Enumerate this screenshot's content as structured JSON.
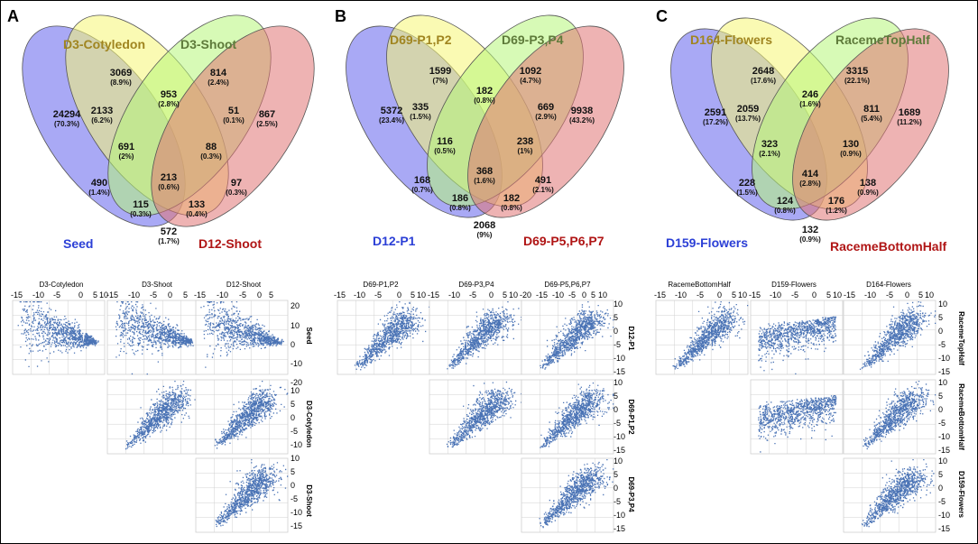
{
  "panels": [
    {
      "letter": "A",
      "venn": {
        "sets": [
          {
            "name": "Seed",
            "color": "#2b3fd6",
            "fill": "#7070ee"
          },
          {
            "name": "D3-Cotyledon",
            "color": "#a08520",
            "fill": "#f6f675"
          },
          {
            "name": "D3-Shoot",
            "color": "#5e7a3a",
            "fill": "#b7f67a"
          },
          {
            "name": "D12-Shoot",
            "color": "#b01515",
            "fill": "#e07575"
          }
        ],
        "regions": [
          {
            "count": "24294",
            "pct": "(70.3%)"
          },
          {
            "count": "3069",
            "pct": "(8.9%)"
          },
          {
            "count": "814",
            "pct": "(2.4%)"
          },
          {
            "count": "867",
            "pct": "(2.5%)"
          },
          {
            "count": "2133",
            "pct": "(6.2%)"
          },
          {
            "count": "953",
            "pct": "(2.8%)"
          },
          {
            "count": "51",
            "pct": "(0.1%)"
          },
          {
            "count": "691",
            "pct": "(2%)"
          },
          {
            "count": "88",
            "pct": "(0.3%)"
          },
          {
            "count": "213",
            "pct": "(0.6%)"
          },
          {
            "count": "490",
            "pct": "(1.4%)"
          },
          {
            "count": "97",
            "pct": "(0.3%)"
          },
          {
            "count": "115",
            "pct": "(0.3%)"
          },
          {
            "count": "133",
            "pct": "(0.4%)"
          },
          {
            "count": "572",
            "pct": "(1.7%)"
          }
        ]
      },
      "scatter": {
        "col_titles": [
          "D3-Cotyledon",
          "D3-Shoot",
          "D12-Shoot"
        ],
        "row_labels": [
          "Seed",
          "D3-Cotyledon",
          "D3-Shoot"
        ],
        "x_ticks": [
          "-15",
          "-10",
          "-5",
          "0",
          "5",
          "10"
        ],
        "y_ticks_first": [
          "20",
          "10",
          "0",
          "-10",
          "-20"
        ],
        "y_ticks_other": [
          "10",
          "5",
          "0",
          "-5",
          "-10",
          "-15"
        ]
      }
    },
    {
      "letter": "B",
      "venn": {
        "sets": [
          {
            "name": "D12-P1",
            "color": "#2b3fd6",
            "fill": "#7070ee"
          },
          {
            "name": "D69-P1,P2",
            "color": "#a08520",
            "fill": "#f6f675"
          },
          {
            "name": "D69-P3,P4",
            "color": "#5e7a3a",
            "fill": "#b7f67a"
          },
          {
            "name": "D69-P5,P6,P7",
            "color": "#b01515",
            "fill": "#e07575"
          }
        ],
        "regions": [
          {
            "count": "5372",
            "pct": "(23.4%)"
          },
          {
            "count": "1599",
            "pct": "(7%)"
          },
          {
            "count": "1092",
            "pct": "(4.7%)"
          },
          {
            "count": "9938",
            "pct": "(43.2%)"
          },
          {
            "count": "335",
            "pct": "(1.5%)"
          },
          {
            "count": "182",
            "pct": "(0.8%)"
          },
          {
            "count": "669",
            "pct": "(2.9%)"
          },
          {
            "count": "116",
            "pct": "(0.5%)"
          },
          {
            "count": "238",
            "pct": "(1%)"
          },
          {
            "count": "368",
            "pct": "(1.6%)"
          },
          {
            "count": "168",
            "pct": "(0.7%)"
          },
          {
            "count": "491",
            "pct": "(2.1%)"
          },
          {
            "count": "186",
            "pct": "(0.8%)"
          },
          {
            "count": "182",
            "pct": "(0.8%)"
          },
          {
            "count": "2068",
            "pct": "(9%)"
          }
        ]
      },
      "scatter": {
        "col_titles": [
          "D69-P1,P2",
          "D69-P3,P4",
          "D69-P5,P6,P7"
        ],
        "row_labels": [
          "D12-P1",
          "D69-P1,P2",
          "D69-P3,P4"
        ],
        "x_ticks": [
          "-15",
          "-10",
          "-5",
          "0",
          "5",
          "10"
        ],
        "x_ticks_c3": [
          "-20",
          "-15",
          "-10",
          "-5",
          "0",
          "5",
          "10"
        ],
        "y_ticks": [
          "10",
          "5",
          "0",
          "-5",
          "-10",
          "-15"
        ]
      }
    },
    {
      "letter": "C",
      "venn": {
        "sets": [
          {
            "name": "D159-Flowers",
            "color": "#2b3fd6",
            "fill": "#7070ee"
          },
          {
            "name": "D164-Flowers",
            "color": "#a08520",
            "fill": "#f6f675"
          },
          {
            "name": "RacemeTopHalf",
            "color": "#5e7a3a",
            "fill": "#b7f67a"
          },
          {
            "name": "RacemeBottomHalf",
            "color": "#b01515",
            "fill": "#e07575"
          }
        ],
        "regions": [
          {
            "count": "2591",
            "pct": "(17.2%)"
          },
          {
            "count": "2648",
            "pct": "(17.6%)"
          },
          {
            "count": "3315",
            "pct": "(22.1%)"
          },
          {
            "count": "1689",
            "pct": "(11.2%)"
          },
          {
            "count": "2059",
            "pct": "(13.7%)"
          },
          {
            "count": "246",
            "pct": "(1.6%)"
          },
          {
            "count": "811",
            "pct": "(5.4%)"
          },
          {
            "count": "323",
            "pct": "(2.1%)"
          },
          {
            "count": "130",
            "pct": "(0.9%)"
          },
          {
            "count": "414",
            "pct": "(2.8%)"
          },
          {
            "count": "228",
            "pct": "(1.5%)"
          },
          {
            "count": "138",
            "pct": "(0.9%)"
          },
          {
            "count": "124",
            "pct": "(0.8%)"
          },
          {
            "count": "176",
            "pct": "(1.2%)"
          },
          {
            "count": "132",
            "pct": "(0.9%)"
          }
        ]
      },
      "scatter": {
        "col_titles": [
          "RacemeBottomHalf",
          "D159-Flowers",
          "D164-Flowers"
        ],
        "row_labels": [
          "RacemeTopHalf",
          "RacemeBottomHalf",
          "D159-Flowers"
        ],
        "x_ticks": [
          "-15",
          "-10",
          "-5",
          "0",
          "5",
          "10"
        ],
        "y_ticks": [
          "10",
          "5",
          "0",
          "-5",
          "-10",
          "-15"
        ]
      }
    }
  ],
  "colors": {
    "point": "#4a73b5",
    "grid": "#d0d0d0",
    "venn_stroke": "#555555"
  }
}
